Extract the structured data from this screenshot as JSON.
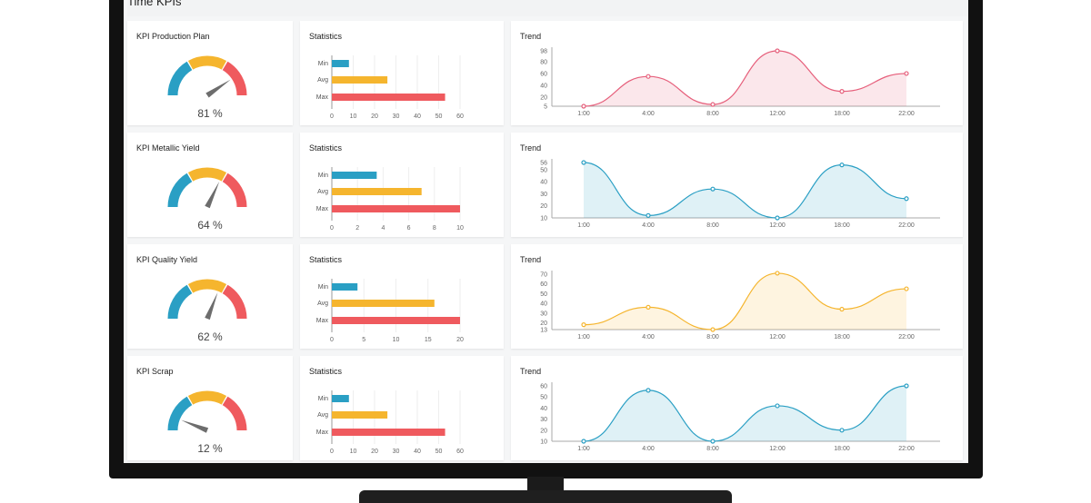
{
  "page_title": "Time KPIs",
  "colors": {
    "blue": "#2a9fc4",
    "yellow": "#f5b52e",
    "red": "#ef5a5e",
    "pink": "#e65f7b"
  },
  "rows": [
    {
      "kpi": {
        "title": "KPI Production Plan",
        "value": 81,
        "value_label": "81 %"
      },
      "stats": {
        "title": "Statistics",
        "chart_data": {
          "type": "bar",
          "categories": [
            "Min",
            "Avg",
            "Max"
          ],
          "values": [
            8,
            26,
            53
          ],
          "xlim": [
            0,
            60
          ],
          "ticks": [
            "0",
            "10",
            "20",
            "30",
            "40",
            "50",
            "60"
          ]
        }
      },
      "trend": {
        "title": "Trend",
        "chart_data": {
          "type": "area",
          "x": [
            "1:00",
            "4:00",
            "8:00",
            "12:00",
            "18:00",
            "22:00"
          ],
          "y": [
            5,
            55,
            8,
            98,
            30,
            60
          ],
          "ylim": [
            5,
            98
          ],
          "yticks": [
            "5",
            "20",
            "40",
            "60",
            "80",
            "98"
          ],
          "color": "#e65f7b"
        }
      }
    },
    {
      "kpi": {
        "title": "KPI Metallic Yield",
        "value": 64,
        "value_label": "64 %"
      },
      "stats": {
        "title": "Statistics",
        "chart_data": {
          "type": "bar",
          "categories": [
            "Min",
            "Avg",
            "Max"
          ],
          "values": [
            3.5,
            7,
            10
          ],
          "xlim": [
            0,
            10
          ],
          "ticks": [
            "0",
            "2",
            "4",
            "6",
            "8",
            "10"
          ]
        }
      },
      "trend": {
        "title": "Trend",
        "chart_data": {
          "type": "area",
          "x": [
            "1:00",
            "4:00",
            "8:00",
            "12:00",
            "18:00",
            "22:00"
          ],
          "y": [
            56,
            12,
            34,
            10,
            54,
            26
          ],
          "ylim": [
            10,
            56
          ],
          "yticks": [
            "10",
            "20",
            "30",
            "40",
            "50",
            "56"
          ],
          "color": "#2a9fc4"
        }
      }
    },
    {
      "kpi": {
        "title": "KPI Quality Yield",
        "value": 62,
        "value_label": "62 %"
      },
      "stats": {
        "title": "Statistics",
        "chart_data": {
          "type": "bar",
          "categories": [
            "Min",
            "Avg",
            "Max"
          ],
          "values": [
            4,
            16,
            20
          ],
          "xlim": [
            0,
            20
          ],
          "ticks": [
            "0",
            "5",
            "10",
            "15",
            "20"
          ]
        }
      },
      "trend": {
        "title": "Trend",
        "chart_data": {
          "type": "area",
          "x": [
            "1:00",
            "4:00",
            "8:00",
            "12:00",
            "18:00",
            "22:00"
          ],
          "y": [
            18,
            36,
            13,
            71,
            34,
            55
          ],
          "ylim": [
            13,
            70
          ],
          "yticks": [
            "13",
            "20",
            "30",
            "40",
            "50",
            "60",
            "70"
          ],
          "color": "#f5b52e"
        }
      }
    },
    {
      "kpi": {
        "title": "KPI Scrap",
        "value": 12,
        "value_label": "12 %"
      },
      "stats": {
        "title": "Statistics",
        "chart_data": {
          "type": "bar",
          "categories": [
            "Min",
            "Avg",
            "Max"
          ],
          "values": [
            8,
            26,
            53
          ],
          "xlim": [
            0,
            60
          ],
          "ticks": [
            "0",
            "10",
            "20",
            "30",
            "40",
            "50",
            "60"
          ]
        }
      },
      "trend": {
        "title": "Trend",
        "chart_data": {
          "type": "area",
          "x": [
            "1:00",
            "4:00",
            "8:00",
            "12:00",
            "18:00",
            "22:00"
          ],
          "y": [
            10,
            56,
            10,
            42,
            20,
            60
          ],
          "ylim": [
            10,
            60
          ],
          "yticks": [
            "10",
            "20",
            "30",
            "40",
            "50",
            "60"
          ],
          "color": "#2a9fc4"
        }
      }
    }
  ]
}
